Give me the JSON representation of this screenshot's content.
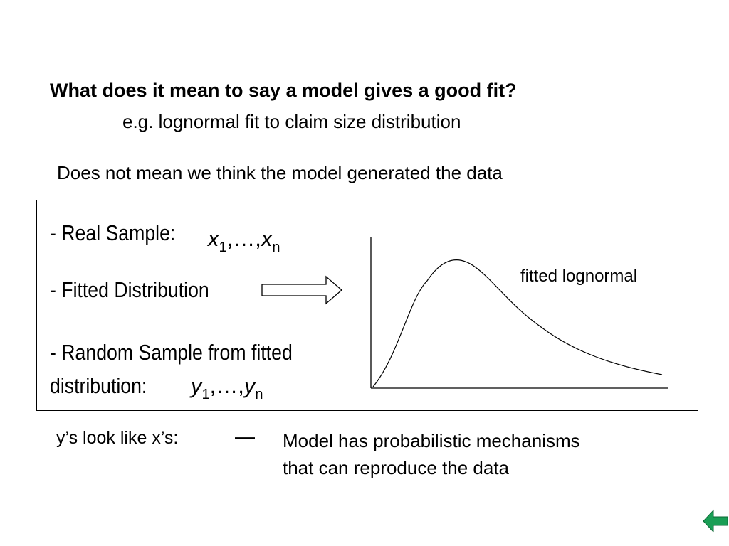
{
  "slide": {
    "title": "What does it mean to say a model gives a good fit?",
    "subtitle": "e.g. lognormal fit to claim size distribution",
    "statement": "Does not mean we think the model generated the data"
  },
  "box": {
    "real_sample_label": "- Real Sample:",
    "real_sample_var": "x",
    "fitted_label": "- Fitted Distribution",
    "random_label_line1": "- Random Sample from fitted",
    "random_label_line2": "distribution:",
    "random_sample_var": "y",
    "sub_first": "1",
    "ellipsis": ",…,",
    "sub_last": "n",
    "curve_label": "fitted lognormal"
  },
  "conclusion": {
    "lhs": "y’s look like x’s:",
    "dash": "—",
    "rhs_line1": "Model has probabilistic mechanisms",
    "rhs_line2": "that can reproduce the data"
  },
  "nav": {
    "back_icon": "back-arrow-icon",
    "color": "#1a9e55"
  }
}
